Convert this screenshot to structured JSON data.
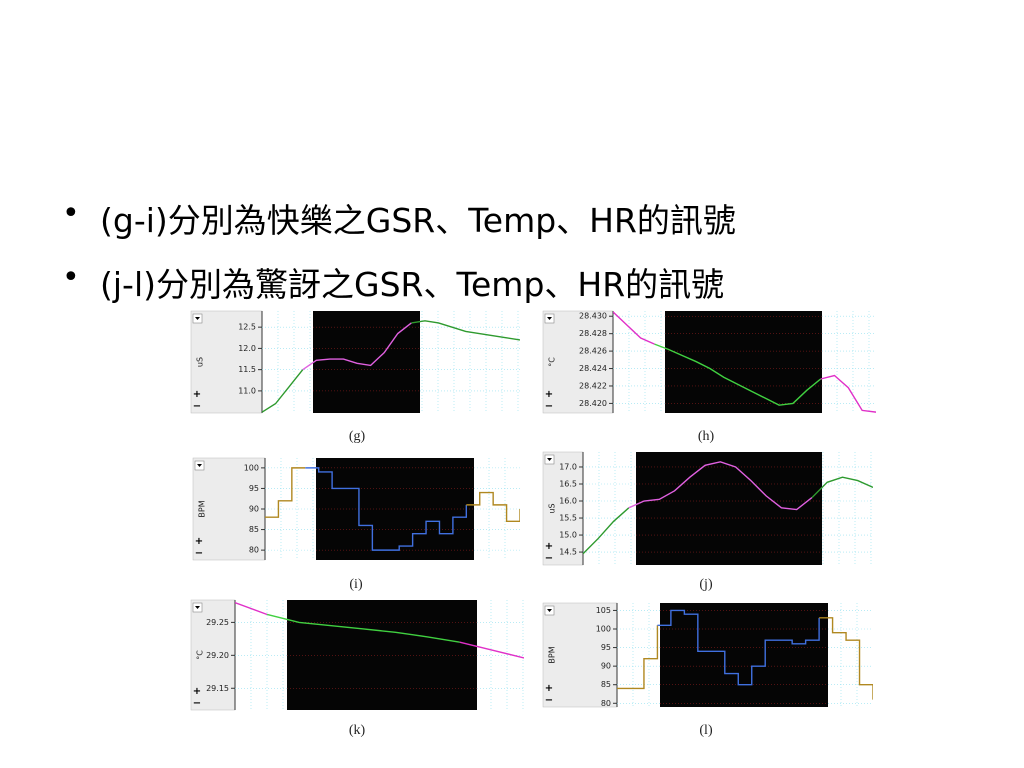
{
  "bullets": [
    "(g-i)分別為快樂之GSR、Temp、HR的訊號",
    "(j-l)分別為驚訝之GSR、Temp、HR的訊號"
  ],
  "chart_data": [
    {
      "type": "line",
      "caption": "(g)",
      "y_label": "uS",
      "ylim": [
        10.48,
        12.88
      ],
      "yticks": [
        {
          "value": 11,
          "label": "11.0"
        },
        11.5,
        {
          "value": 12,
          "label": "12.0"
        },
        12.5
      ],
      "categories": [
        null,
        null,
        null,
        null,
        null,
        null,
        null,
        null,
        null,
        null,
        null,
        null,
        null,
        null,
        null,
        null,
        null,
        null,
        null,
        null
      ],
      "values": [
        10.5,
        10.7,
        11.1,
        11.5,
        11.72,
        11.75,
        11.75,
        11.65,
        11.6,
        11.9,
        12.35,
        12.6,
        12.65,
        12.6,
        12.5,
        12.4,
        12.35,
        12.3,
        12.25,
        12.2
      ],
      "line_color": "#2e9a2e",
      "highlight_color": "#e060e0",
      "grid": true
    },
    {
      "type": "line",
      "caption": "(h)",
      "y_label": "°C",
      "ylim": [
        28.4189,
        28.4306
      ],
      "yticks": [
        {
          "value": 28.42,
          "label": "28.420"
        },
        28.422,
        28.424,
        28.426,
        28.428,
        {
          "value": 28.43,
          "label": "28.430"
        }
      ],
      "categories": [
        null,
        null,
        null,
        null,
        null,
        null,
        null,
        null,
        null,
        null,
        null,
        null,
        null,
        null,
        null,
        null,
        null,
        null,
        null,
        null
      ],
      "values": [
        28.4305,
        28.429,
        28.4275,
        28.4268,
        28.4262,
        28.4255,
        28.4248,
        28.424,
        28.423,
        28.4222,
        28.4214,
        28.4206,
        28.4198,
        28.42,
        28.4215,
        28.4228,
        28.4232,
        28.4218,
        28.4192,
        28.419
      ],
      "line_color": "#e030c8",
      "highlight_color": "#40d040",
      "grid": true
    },
    {
      "type": "step",
      "caption": "(i)",
      "y_label": "BPM",
      "ylim": [
        77.6,
        102.4
      ],
      "yticks": [
        80,
        85,
        90,
        95,
        100
      ],
      "categories": [
        null,
        null,
        null,
        null,
        null,
        null,
        null,
        null,
        null,
        null,
        null,
        null,
        null,
        null,
        null,
        null,
        null,
        null,
        null,
        null
      ],
      "values": [
        88,
        92,
        100,
        100,
        99,
        95,
        95,
        86,
        80,
        80,
        81,
        84,
        87,
        84,
        88,
        91,
        94,
        91,
        87,
        90
      ],
      "line_color": "#b08820",
      "highlight_color": "#4070e0",
      "grid": true
    },
    {
      "type": "line",
      "caption": "(j)",
      "y_label": "uS",
      "ylim": [
        14.12,
        17.44
      ],
      "yticks": [
        {
          "value": 14.5,
          "label": "14.5"
        },
        {
          "value": 15,
          "label": "15.0"
        },
        15.5,
        {
          "value": 16,
          "label": "16.0"
        },
        16.5,
        {
          "value": 17,
          "label": "17.0"
        }
      ],
      "categories": [
        null,
        null,
        null,
        null,
        null,
        null,
        null,
        null,
        null,
        null,
        null,
        null,
        null,
        null,
        null,
        null,
        null,
        null,
        null,
        null
      ],
      "values": [
        14.45,
        14.9,
        15.4,
        15.8,
        16.0,
        16.05,
        16.3,
        16.7,
        17.05,
        17.15,
        17.0,
        16.6,
        16.15,
        15.8,
        15.75,
        16.1,
        16.55,
        16.7,
        16.6,
        16.4
      ],
      "line_color": "#2e9a2e",
      "highlight_color": "#e060e0",
      "grid": true
    },
    {
      "type": "line",
      "caption": "(k)",
      "y_label": "°C",
      "ylim": [
        29.117,
        29.284
      ],
      "yticks": [
        29.15,
        {
          "value": 29.2,
          "label": "29.20"
        },
        29.25
      ],
      "categories": [
        null,
        null,
        null,
        null,
        null,
        null,
        null,
        null,
        null,
        null
      ],
      "values": [
        29.28,
        29.262,
        29.25,
        29.245,
        29.24,
        29.235,
        29.228,
        29.22,
        29.208,
        29.196
      ],
      "line_color": "#e030c8",
      "highlight_color": "#40d040",
      "grid": true
    },
    {
      "type": "step",
      "caption": "(l)",
      "y_label": "BPM",
      "ylim": [
        79,
        107
      ],
      "yticks": [
        80,
        85,
        90,
        95,
        100,
        105
      ],
      "categories": [
        null,
        null,
        null,
        null,
        null,
        null,
        null,
        null,
        null,
        null,
        null,
        null,
        null,
        null,
        null,
        null,
        null,
        null,
        null,
        null
      ],
      "values": [
        84,
        84,
        92,
        101,
        105,
        104,
        94,
        94,
        88,
        85,
        90,
        97,
        97,
        96,
        97,
        103,
        99,
        97,
        85,
        81
      ],
      "line_color": "#b08820",
      "highlight_color": "#4070e0",
      "grid": true
    }
  ]
}
